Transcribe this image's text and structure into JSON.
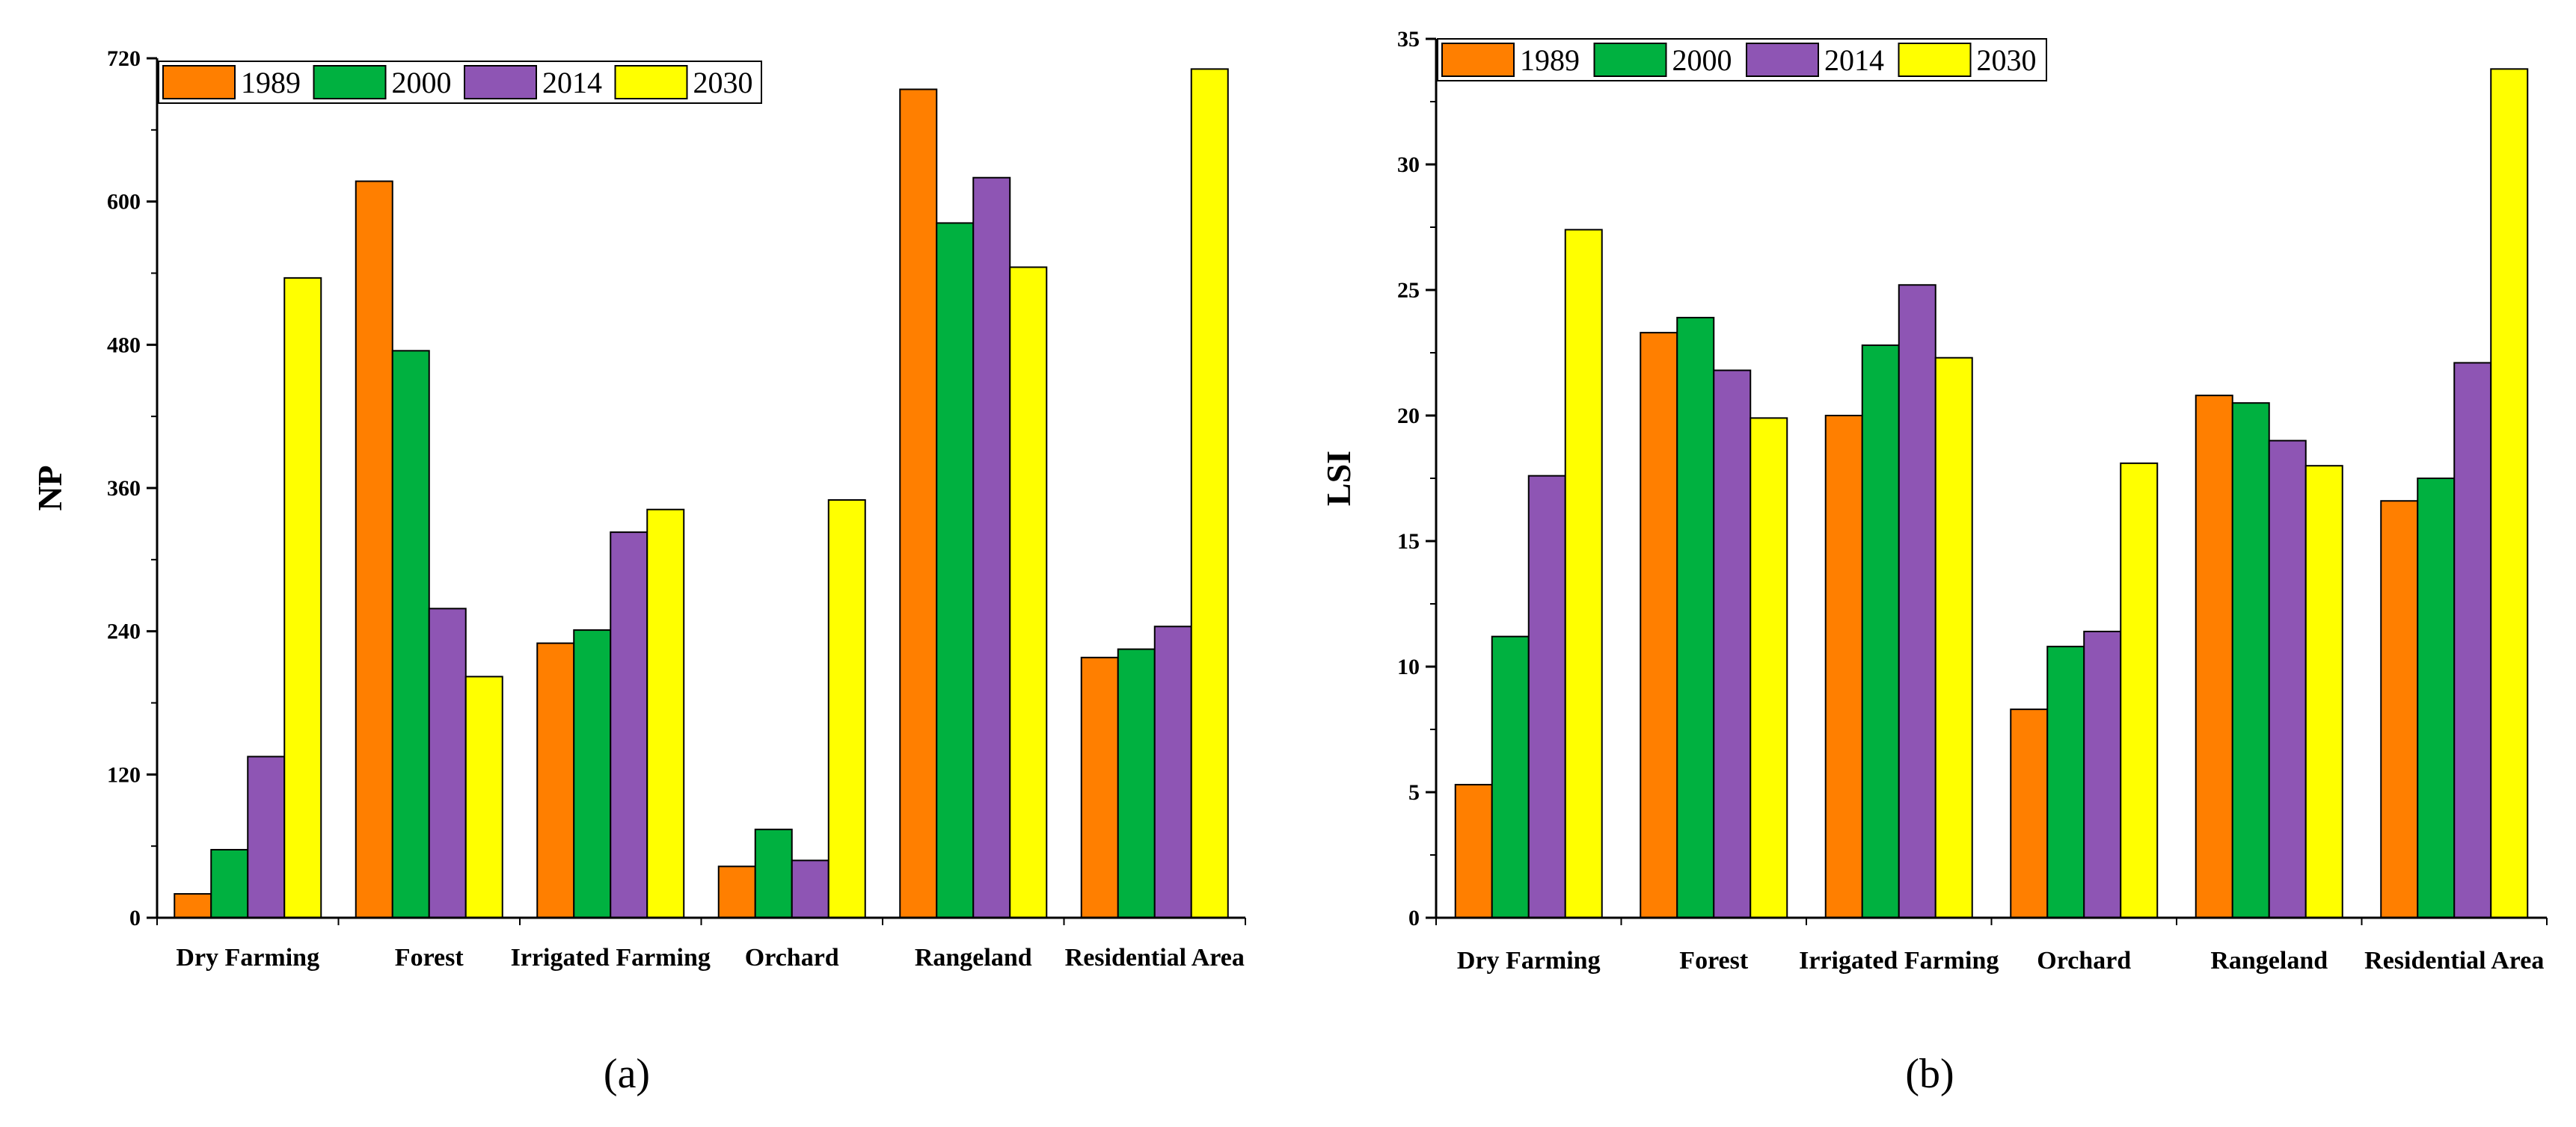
{
  "colors": {
    "s1989": "#ff7f00",
    "s2000": "#00b140",
    "s2014": "#8e55b4",
    "s2030": "#ffff00"
  },
  "chart_data": [
    {
      "type": "bar",
      "panel_label": "(a)",
      "ylabel": "NP",
      "ylim": [
        0,
        720
      ],
      "yticks": [
        "0",
        "120",
        "240",
        "360",
        "480",
        "600",
        "720"
      ],
      "categories": [
        "Dry Farming",
        "Forest",
        "Irrigated Farming",
        "Orchard",
        "Rangeland",
        "Residential Area"
      ],
      "legend_position": "top-left",
      "series": [
        {
          "name": "1989",
          "values": [
            20,
            617,
            230,
            43,
            694,
            218
          ]
        },
        {
          "name": "2000",
          "values": [
            57,
            475,
            241,
            74,
            582,
            225
          ]
        },
        {
          "name": "2014",
          "values": [
            135,
            259,
            323,
            48,
            620,
            244
          ]
        },
        {
          "name": "2030",
          "values": [
            536,
            202,
            342,
            350,
            545,
            711
          ]
        }
      ]
    },
    {
      "type": "bar",
      "panel_label": "(b)",
      "ylabel": "LSI",
      "ylim": [
        0,
        35
      ],
      "yticks": [
        "0",
        "5",
        "10",
        "15",
        "20",
        "25",
        "30",
        "35"
      ],
      "categories": [
        "Dry Farming",
        "Forest",
        "Irrigated Farming",
        "Orchard",
        "Rangeland",
        "Residential Area"
      ],
      "legend_position": "top-left",
      "series": [
        {
          "name": "1989",
          "values": [
            5.3,
            23.3,
            20.0,
            8.3,
            20.8,
            16.6
          ]
        },
        {
          "name": "2000",
          "values": [
            11.2,
            23.9,
            22.8,
            10.8,
            20.5,
            17.5
          ]
        },
        {
          "name": "2014",
          "values": [
            17.6,
            21.8,
            25.2,
            11.4,
            19.0,
            22.1
          ]
        },
        {
          "name": "2030",
          "values": [
            27.4,
            19.9,
            22.3,
            18.1,
            18.0,
            33.8
          ]
        }
      ]
    }
  ]
}
